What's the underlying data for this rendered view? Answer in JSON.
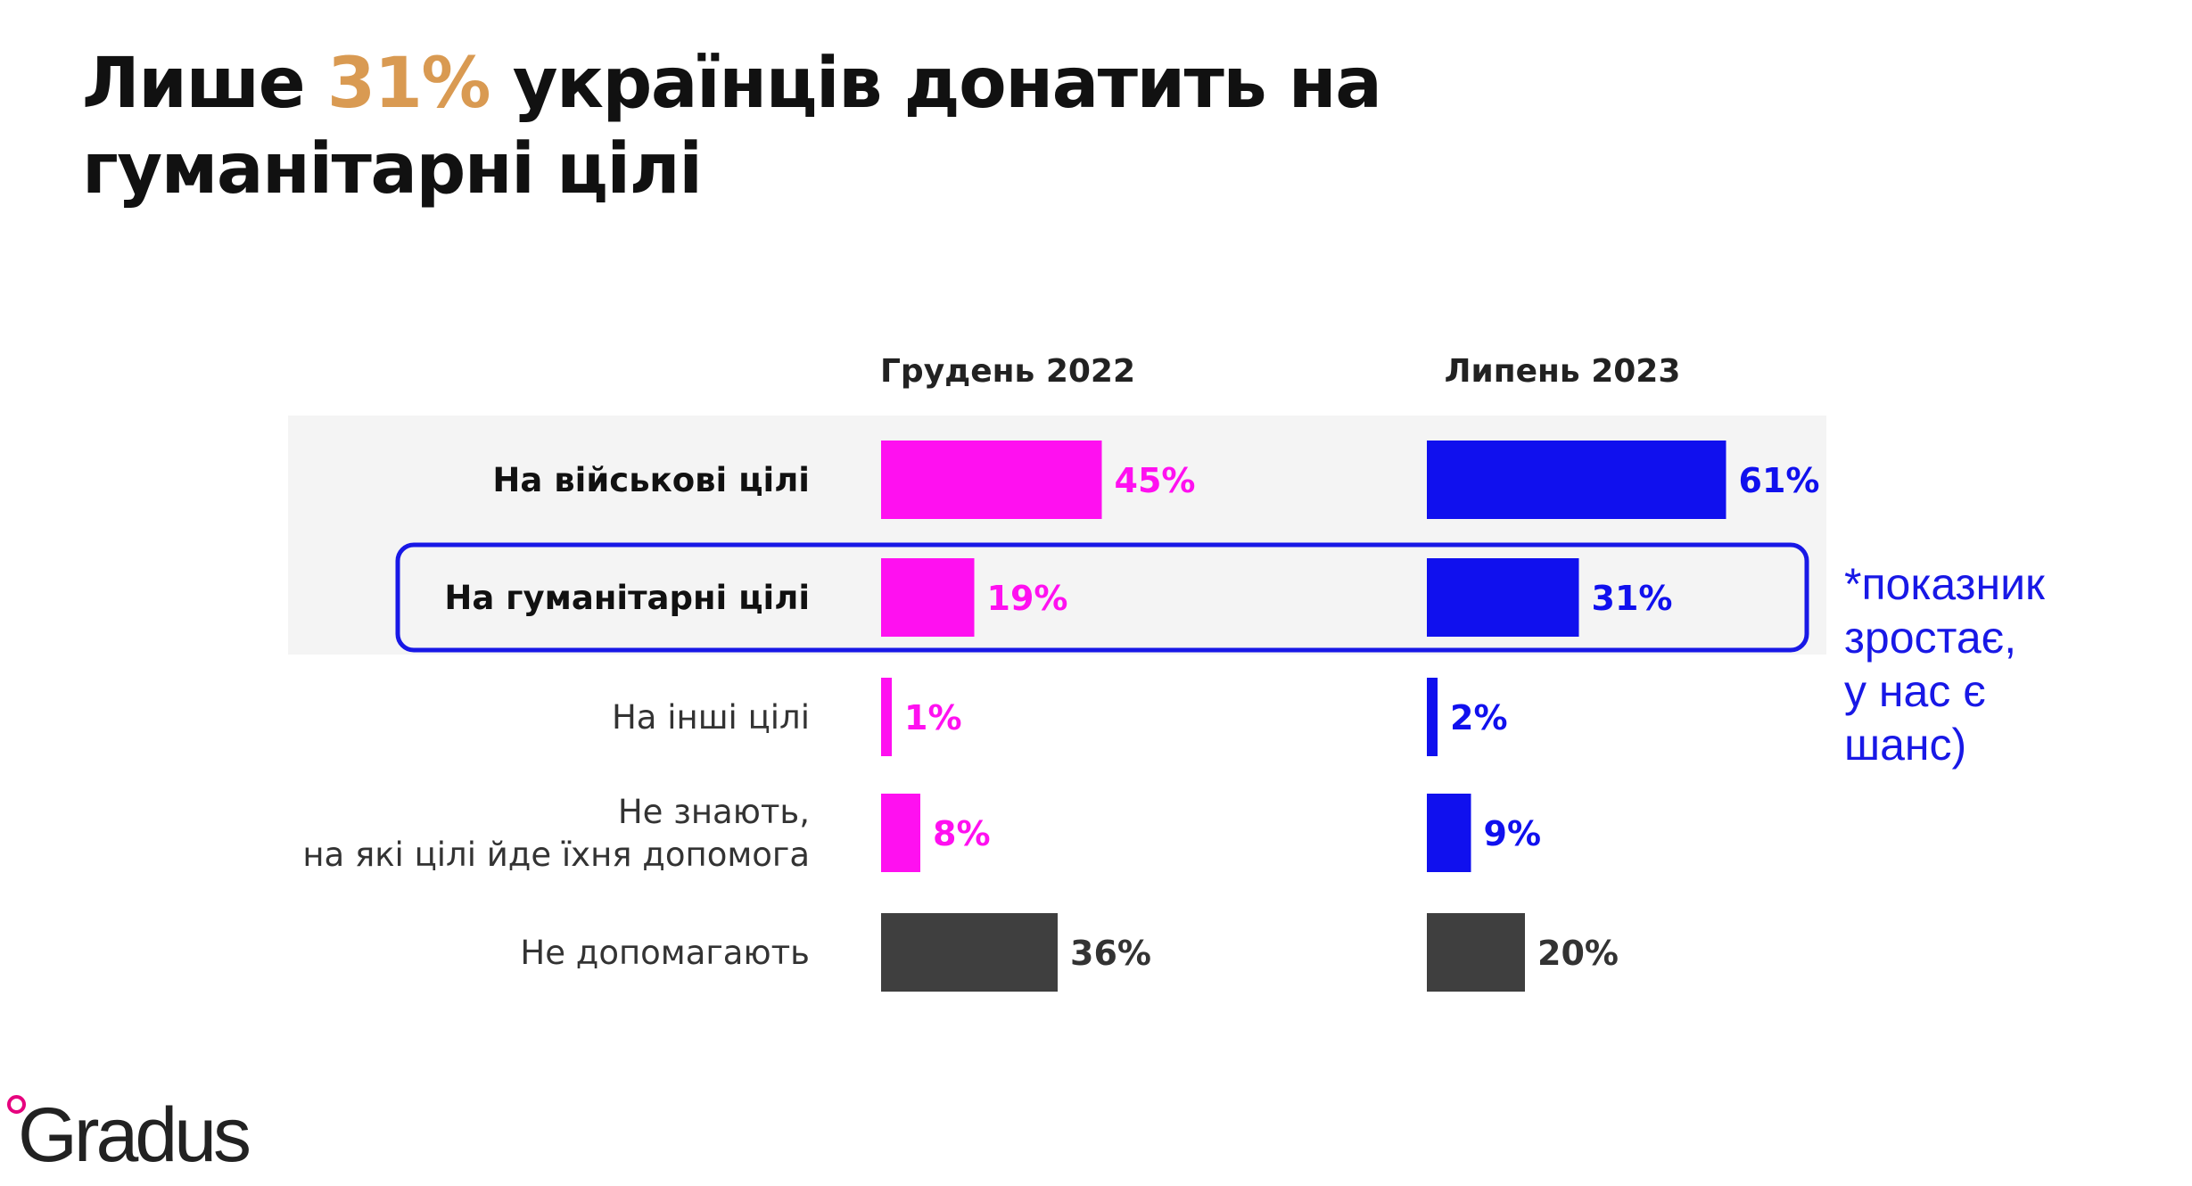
{
  "title": {
    "prefix": "Лише ",
    "highlight": "31%",
    "rest": " українців донатить на",
    "line2": "гуманітарні цілі"
  },
  "note": {
    "lines": [
      "*показник",
      "зростає,",
      "у нас є",
      "шанс)"
    ]
  },
  "logo": {
    "text": "Gradus"
  },
  "colors": {
    "dec2022": "#ff10f0",
    "jul2023": "#1010ee",
    "not_helping": "#3f3f3f",
    "shade": "#f4f4f4",
    "frame": "#1818e6",
    "title_highlight": "#d99a52"
  },
  "chart_data": {
    "type": "bar",
    "orientation": "horizontal",
    "title": "",
    "xlabel": "",
    "ylabel": "",
    "unit": "%",
    "categories": [
      "На військові цілі",
      "На гуманітарні цілі",
      "На інші цілі",
      "Не знають, на які цілі йде їхня допомога",
      "Не допомагають"
    ],
    "category_lines": [
      [
        "На військові цілі"
      ],
      [
        "На гуманітарні цілі"
      ],
      [
        "На інші цілі"
      ],
      [
        "Не знають,",
        "на які цілі йде їхня допомога"
      ],
      [
        "Не допомагають"
      ]
    ],
    "series": [
      {
        "name": "Грудень 2022",
        "values": [
          45,
          19,
          1,
          8,
          36
        ],
        "labels": [
          "45%",
          "19%",
          "1%",
          "8%",
          "36%"
        ]
      },
      {
        "name": "Липень 2023",
        "values": [
          61,
          31,
          2,
          9,
          20
        ],
        "labels": [
          "61%",
          "31%",
          "2%",
          "9%",
          "20%"
        ]
      }
    ],
    "bold_categories": [
      0,
      1
    ],
    "shaded_categories": [
      0,
      1
    ],
    "highlighted_category": 1,
    "grid": false,
    "legend": "none"
  }
}
